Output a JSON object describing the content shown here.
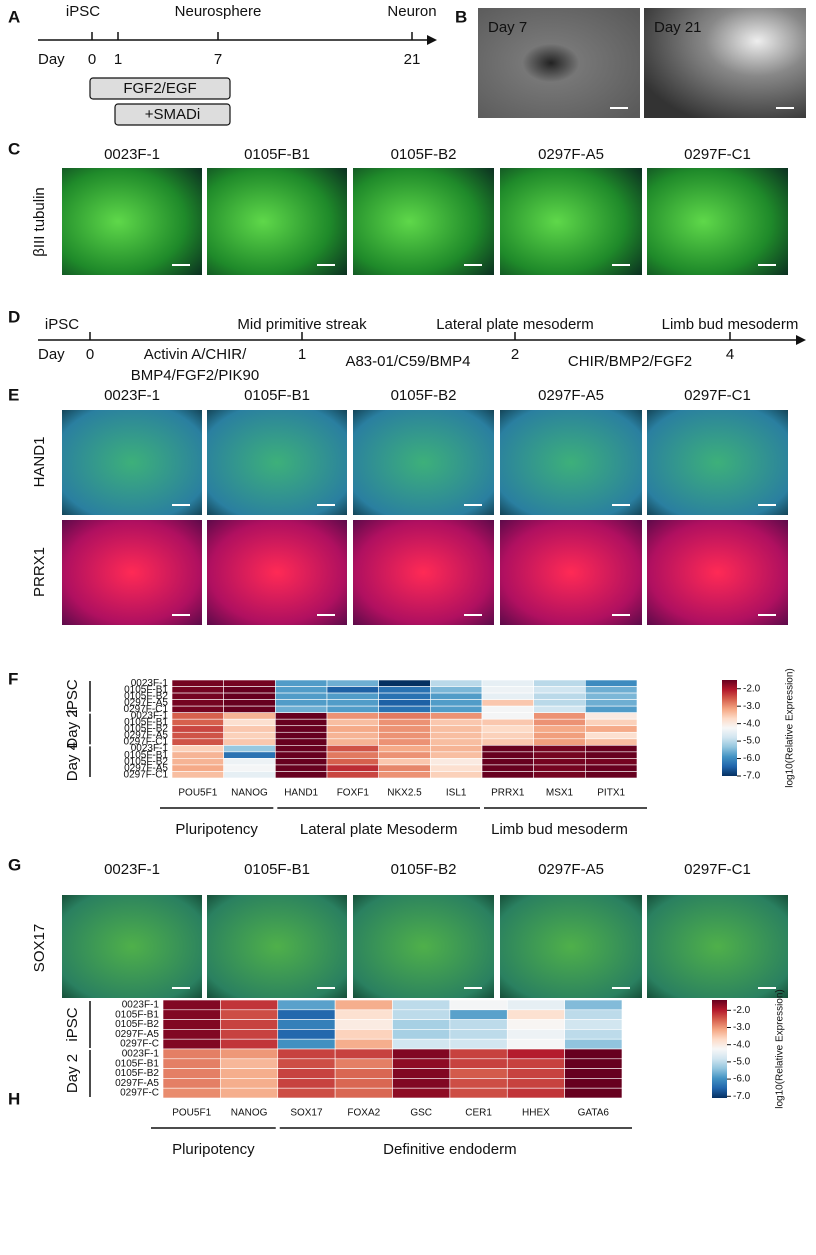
{
  "panel_a": {
    "label": "A",
    "stages": [
      "iPSC",
      "Neurosphere",
      "Neuron"
    ],
    "day_label": "Day",
    "days": [
      "0",
      "1",
      "7",
      "21"
    ],
    "treatments": [
      "FGF2/EGF",
      "+SMADi"
    ]
  },
  "panel_b": {
    "label": "B",
    "images": [
      "Day 7",
      "Day 21"
    ]
  },
  "panel_c": {
    "label": "C",
    "stain": "βIII tubulin",
    "samples": [
      "0023F-1",
      "0105F-B1",
      "0105F-B2",
      "0297F-A5",
      "0297F-C1"
    ]
  },
  "panel_d": {
    "label": "D",
    "stages": [
      "iPSC",
      "Mid primitive streak",
      "Lateral plate mesoderm",
      "Limb bud mesoderm"
    ],
    "day_label": "Day",
    "days": [
      "0",
      "1",
      "2",
      "4"
    ],
    "treatments": [
      [
        "Activin A/CHIR/",
        "BMP4/FGF2/PIK90"
      ],
      [
        "A83-01/C59/BMP4"
      ],
      [
        "CHIR/BMP2/FGF2"
      ]
    ]
  },
  "panel_e": {
    "label": "E",
    "samples": [
      "0023F-1",
      "0105F-B1",
      "0105F-B2",
      "0297F-A5",
      "0297F-C1"
    ],
    "stains": [
      "HAND1",
      "PRRX1"
    ]
  },
  "panel_f": {
    "label": "F",
    "type": "heatmap",
    "groups": [
      {
        "name": "iPSC",
        "rows": [
          "0023F-1",
          "0105F-B1",
          "0105F-B2",
          "0297F-A5",
          "0297F-C1"
        ]
      },
      {
        "name": "Day 2",
        "rows": [
          "0023F-1",
          "0105F-B1",
          "0105F-B2",
          "0297F-A5",
          "0297F-C1"
        ]
      },
      {
        "name": "Day 4",
        "rows": [
          "0023F-1",
          "0105F-B1",
          "0105F-B2",
          "0297F-A5",
          "0297F-C1"
        ]
      }
    ],
    "column_groups": [
      {
        "name": "Pluripotency",
        "columns": [
          "POU5F1",
          "NANOG"
        ]
      },
      {
        "name": "Lateral plate Mesoderm",
        "columns": [
          "HAND1",
          "FOXF1",
          "NKX2.5",
          "ISL1"
        ]
      },
      {
        "name": "Limb bud mesoderm",
        "columns": [
          "PRRX1",
          "MSX1",
          "PITX1"
        ]
      }
    ],
    "values": [
      [
        -1.6,
        -1.6,
        -5.8,
        -5.6,
        -7.0,
        -5.0,
        -4.5,
        -5.0,
        -6.0
      ],
      [
        -1.6,
        -1.5,
        -5.8,
        -6.5,
        -6.3,
        -5.5,
        -4.4,
        -4.8,
        -5.6
      ],
      [
        -1.6,
        -1.5,
        -5.8,
        -5.8,
        -6.3,
        -5.8,
        -4.5,
        -5.0,
        -5.5
      ],
      [
        -1.6,
        -1.5,
        -5.8,
        -5.8,
        -6.5,
        -5.8,
        -3.5,
        -5.0,
        -5.6
      ],
      [
        -1.6,
        -1.5,
        -5.6,
        -5.8,
        -6.3,
        -5.8,
        -4.3,
        -4.8,
        -5.8
      ],
      [
        -2.6,
        -3.3,
        -1.5,
        -3.0,
        -2.8,
        -3.0,
        -4.3,
        -3.0,
        -4.0
      ],
      [
        -2.6,
        -3.8,
        -1.5,
        -3.4,
        -3.0,
        -3.5,
        -3.5,
        -3.0,
        -3.6
      ],
      [
        -2.4,
        -3.5,
        -1.5,
        -3.2,
        -3.0,
        -3.4,
        -3.7,
        -3.2,
        -3.2
      ],
      [
        -2.5,
        -3.6,
        -1.5,
        -3.3,
        -3.0,
        -3.4,
        -3.6,
        -3.1,
        -3.8
      ],
      [
        -2.5,
        -3.5,
        -1.5,
        -3.3,
        -3.0,
        -3.4,
        -3.5,
        -3.1,
        -3.4
      ],
      [
        -3.6,
        -5.3,
        -1.5,
        -2.5,
        -3.2,
        -3.3,
        -1.5,
        -1.6,
        -1.5
      ],
      [
        -3.3,
        -6.3,
        -1.5,
        -2.8,
        -3.0,
        -3.4,
        -1.5,
        -1.6,
        -1.5
      ],
      [
        -3.3,
        -4.4,
        -1.5,
        -2.6,
        -3.5,
        -4.0,
        -1.5,
        -1.6,
        -1.6
      ],
      [
        -3.2,
        -4.3,
        -1.5,
        -2.2,
        -2.9,
        -3.8,
        -1.5,
        -1.6,
        -1.5
      ],
      [
        -3.4,
        -4.5,
        -1.5,
        -2.4,
        -3.0,
        -3.6,
        -1.5,
        -1.6,
        -1.5
      ]
    ],
    "colorbar_label": "log10(Relative Expression)",
    "clim": [
      -7.0,
      -1.5
    ],
    "cticks": [
      {
        "value": -2,
        "label": "-2.0"
      },
      {
        "value": -3,
        "label": "-3.0"
      },
      {
        "value": -4,
        "label": "-4.0"
      },
      {
        "value": -5,
        "label": "-5.0"
      },
      {
        "value": -6,
        "label": "-6.0"
      },
      {
        "value": -7,
        "label": "-7.0"
      }
    ],
    "colormap": [
      "#053061",
      "#2166ac",
      "#4393c3",
      "#92c5de",
      "#d1e5f0",
      "#f7f7f7",
      "#fddbc7",
      "#f4a582",
      "#d6604d",
      "#b2182b",
      "#67001f"
    ]
  },
  "panel_g": {
    "label": "G",
    "stain": "SOX17",
    "samples": [
      "0023F-1",
      "0105F-B1",
      "0105F-B2",
      "0297F-A5",
      "0297F-C1"
    ]
  },
  "panel_h": {
    "label": "H",
    "type": "heatmap",
    "groups": [
      {
        "name": "iPSC",
        "rows": [
          "0023F-1",
          "0105F-B1",
          "0105F-B2",
          "0297F-A5",
          "0297F-C"
        ]
      },
      {
        "name": "Day 2",
        "rows": [
          "0023F-1",
          "0105F-B1",
          "0105F-B2",
          "0297F-A5",
          "0297F-C"
        ]
      }
    ],
    "column_groups": [
      {
        "name": "Pluripotency",
        "columns": [
          "POU5F1",
          "NANOG"
        ]
      },
      {
        "name": "Definitive endoderm",
        "columns": [
          "SOX17",
          "FOXA2",
          "GSC",
          "CER1",
          "HHEX",
          "GATA6"
        ]
      }
    ],
    "values": [
      [
        -1.6,
        -2.2,
        -5.8,
        -3.2,
        -5.0,
        -4.3,
        -4.5,
        -5.5
      ],
      [
        -1.6,
        -2.4,
        -6.5,
        -3.8,
        -5.0,
        -5.8,
        -3.8,
        -5.0
      ],
      [
        -1.6,
        -2.3,
        -6.2,
        -4.0,
        -5.2,
        -5.0,
        -4.2,
        -4.8
      ],
      [
        -1.6,
        -2.3,
        -6.5,
        -3.6,
        -5.2,
        -5.0,
        -4.4,
        -5.0
      ],
      [
        -1.6,
        -2.2,
        -6.0,
        -3.2,
        -4.8,
        -4.8,
        -4.3,
        -5.4
      ],
      [
        -2.8,
        -3.0,
        -2.3,
        -2.3,
        -1.6,
        -2.3,
        -2.0,
        -1.3
      ],
      [
        -2.8,
        -3.3,
        -2.4,
        -2.8,
        -1.7,
        -2.3,
        -2.3,
        -1.4
      ],
      [
        -2.8,
        -3.2,
        -2.3,
        -2.6,
        -1.6,
        -2.5,
        -2.3,
        -1.4
      ],
      [
        -2.8,
        -3.2,
        -2.3,
        -2.6,
        -1.6,
        -2.4,
        -2.3,
        -1.4
      ],
      [
        -2.9,
        -3.2,
        -2.4,
        -2.6,
        -1.7,
        -2.4,
        -2.2,
        -1.4
      ]
    ],
    "colorbar_label": "log10(Relative Expression)",
    "clim": [
      -7.1,
      -1.4
    ],
    "cticks": [
      {
        "value": -2,
        "label": "-2.0"
      },
      {
        "value": -3,
        "label": "-3.0"
      },
      {
        "value": -4,
        "label": "-4.0"
      },
      {
        "value": -5,
        "label": "-5.0"
      },
      {
        "value": -6,
        "label": "-6.0"
      },
      {
        "value": -7,
        "label": "-7.0"
      }
    ],
    "colormap": [
      "#053061",
      "#2166ac",
      "#4393c3",
      "#92c5de",
      "#d1e5f0",
      "#f7f7f7",
      "#fddbc7",
      "#f4a582",
      "#d6604d",
      "#b2182b",
      "#67001f"
    ]
  }
}
